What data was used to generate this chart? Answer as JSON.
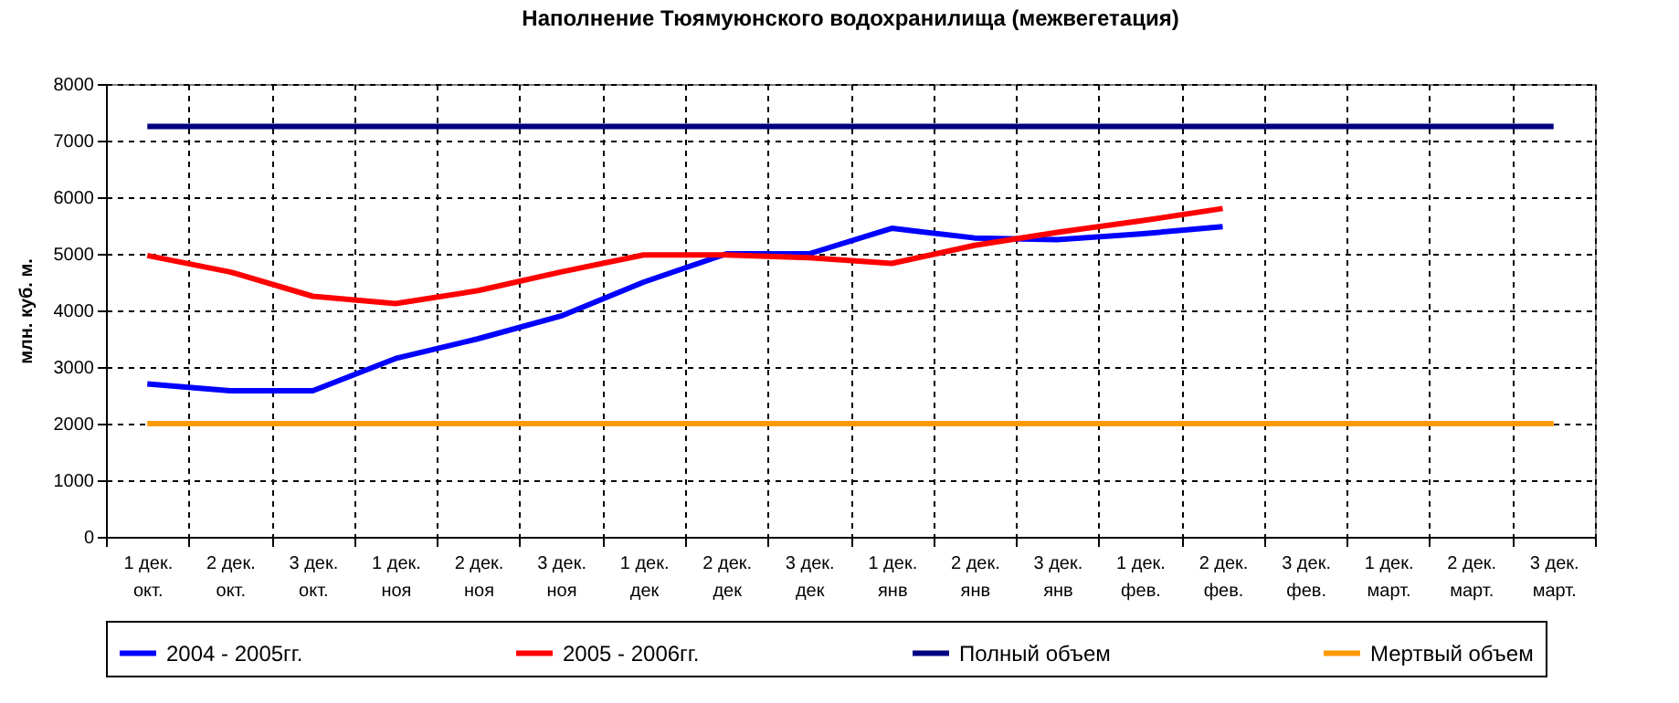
{
  "chart_data": {
    "type": "line",
    "title": "Наполнение Тюямуюнского водохранилища (межвегетация)",
    "ylabel": "млн. куб. м.",
    "categories": [
      "1 дек.\nокт.",
      "2 дек.\nокт.",
      "3 дек.\nокт.",
      "1 дек.\nноя",
      "2 дек.\nноя",
      "3 дек.\nноя",
      "1 дек.\nдек",
      "2 дек.\nдек",
      "3 дек.\nдек",
      "1 дек.\nянв",
      "2 дек.\nянв",
      "3 дек.\nянв",
      "1 дек.\nфев.",
      "2 дек.\nфев.",
      "3 дек.\nфев.",
      "1 дек.\nмарт.",
      "2 дек.\nмарт.",
      "3 дек.\nмарт."
    ],
    "series": [
      {
        "name": "2004 - 2005гг.",
        "color": "#0000ff",
        "values": [
          2700,
          2580,
          2580,
          3150,
          3500,
          3900,
          4500,
          5000,
          5000,
          5450,
          5280,
          5250,
          5350,
          5480,
          null,
          null,
          null,
          null
        ]
      },
      {
        "name": "2005 - 2006гг.",
        "color": "#ff0000",
        "values": [
          4970,
          4680,
          4250,
          4120,
          4350,
          4680,
          4980,
          4980,
          4930,
          4830,
          5150,
          5380,
          5580,
          5800,
          null,
          null,
          null,
          null
        ]
      },
      {
        "name": "Полный объем",
        "color": "#000080",
        "values": [
          7250,
          7250,
          7250,
          7250,
          7250,
          7250,
          7250,
          7250,
          7250,
          7250,
          7250,
          7250,
          7250,
          7250,
          7250,
          7250,
          7250,
          7250
        ]
      },
      {
        "name": "Мертвый объем",
        "color": "#ff9900",
        "values": [
          2000,
          2000,
          2000,
          2000,
          2000,
          2000,
          2000,
          2000,
          2000,
          2000,
          2000,
          2000,
          2000,
          2000,
          2000,
          2000,
          2000,
          2000
        ]
      }
    ],
    "ylim": [
      0,
      8000
    ],
    "yticks": [
      0,
      1000,
      2000,
      3000,
      4000,
      5000,
      6000,
      7000,
      8000
    ],
    "grid": true,
    "legend": "bottom",
    "marker": "none",
    "line_style": "solid"
  }
}
